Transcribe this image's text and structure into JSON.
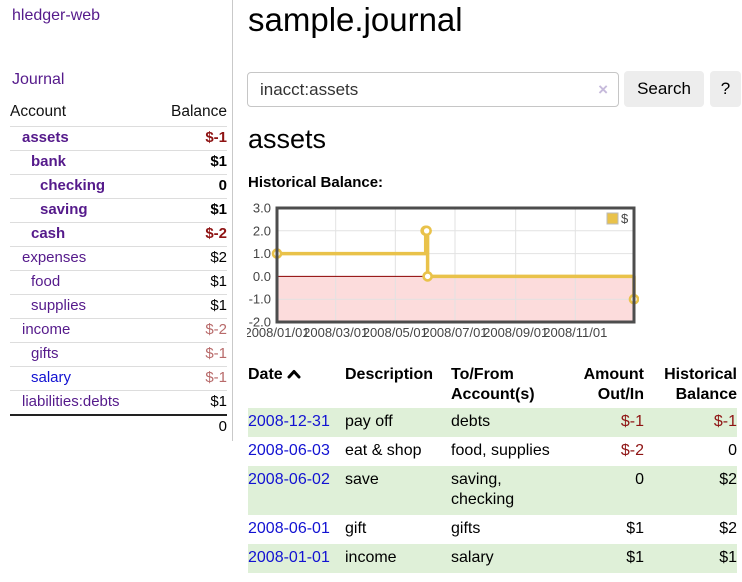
{
  "sidebar": {
    "brand": "hledger-web",
    "nav": {
      "journal_label": "Journal"
    },
    "accounts_table": {
      "headers": {
        "account": "Account",
        "balance": "Balance"
      },
      "rows": [
        {
          "label": "assets",
          "indent": 1,
          "bold": true,
          "balance": "$-1",
          "balance_style": "neg-strong",
          "link_style": "purple"
        },
        {
          "label": "bank",
          "indent": 2,
          "bold": true,
          "balance": "$1",
          "balance_style": "plain",
          "link_style": "purple"
        },
        {
          "label": "checking",
          "indent": 3,
          "bold": true,
          "balance": "0",
          "balance_style": "plain",
          "link_style": "purple"
        },
        {
          "label": "saving",
          "indent": 3,
          "bold": true,
          "balance": "$1",
          "balance_style": "plain",
          "link_style": "purple"
        },
        {
          "label": "cash",
          "indent": 2,
          "bold": true,
          "balance": "$-2",
          "balance_style": "neg-strong",
          "link_style": "purple"
        },
        {
          "label": "expenses",
          "indent": 1,
          "bold": false,
          "balance": "$2",
          "balance_style": "plain",
          "link_style": "purple"
        },
        {
          "label": "food",
          "indent": 2,
          "bold": false,
          "balance": "$1",
          "balance_style": "plain",
          "link_style": "purple"
        },
        {
          "label": "supplies",
          "indent": 2,
          "bold": false,
          "balance": "$1",
          "balance_style": "plain",
          "link_style": "purple"
        },
        {
          "label": "income",
          "indent": 1,
          "bold": false,
          "balance": "$-2",
          "balance_style": "neg-faint",
          "link_style": "purple"
        },
        {
          "label": "gifts",
          "indent": 2,
          "bold": false,
          "balance": "$-1",
          "balance_style": "neg-faint",
          "link_style": "purple"
        },
        {
          "label": "salary",
          "indent": 2,
          "bold": false,
          "balance": "$-1",
          "balance_style": "neg-faint",
          "link_style": "blue"
        },
        {
          "label": "liabilities:debts",
          "indent": 1,
          "bold": false,
          "balance": "$1",
          "balance_style": "plain",
          "link_style": "purple"
        }
      ],
      "total": "0"
    }
  },
  "header": {
    "title": "sample.journal"
  },
  "search": {
    "value": "inacct:assets",
    "clear_icon": "×",
    "search_label": "Search",
    "help_label": "?"
  },
  "account_page": {
    "title": "assets",
    "chart_label": "Historical Balance:"
  },
  "chart_data": {
    "type": "line",
    "step": true,
    "title": "Historical Balance",
    "series": [
      {
        "name": "$",
        "color": "#e9c24a",
        "points": [
          {
            "x": "2008-01-01",
            "y": 1
          },
          {
            "x": "2008-06-01",
            "y": 2
          },
          {
            "x": "2008-06-02",
            "y": 2
          },
          {
            "x": "2008-06-03",
            "y": 0
          },
          {
            "x": "2008-12-31",
            "y": -1
          }
        ]
      }
    ],
    "x_range": [
      "2008-01-01",
      "2008-12-31"
    ],
    "x_tick_labels": [
      "2008/01/01",
      "2008/03/01",
      "2008/05/01",
      "2008/07/01",
      "2008/09/01",
      "2008/11/01"
    ],
    "x_tick_dates": [
      "2008-01-01",
      "2008-03-01",
      "2008-05-01",
      "2008-07-01",
      "2008-09-01",
      "2008-11-01"
    ],
    "y_ticks": [
      "3.0",
      "2.0",
      "1.0",
      "0.0",
      "-1.0",
      "-2.0"
    ],
    "ylim": [
      -2,
      3
    ],
    "grid": true,
    "legend": {
      "label": "$",
      "position": "top-right"
    },
    "negative_region_color": "#fcdcdc",
    "zero_line_color": "#8b0000"
  },
  "register_table": {
    "headers": {
      "date": "Date",
      "description": "Description",
      "accounts": "To/From Account(s)",
      "amount": "Amount Out/In",
      "balance": "Historical Balance"
    },
    "sort": "date-ascending-arrow",
    "rows": [
      {
        "date": "2008-12-31",
        "description": "pay off",
        "accounts": "debts",
        "amount": "$-1",
        "amount_neg": true,
        "balance": "$-1",
        "balance_neg": true,
        "highlight": true
      },
      {
        "date": "2008-06-03",
        "description": "eat & shop",
        "accounts": "food, supplies",
        "amount": "$-2",
        "amount_neg": true,
        "balance": "0",
        "balance_neg": false,
        "highlight": false
      },
      {
        "date": "2008-06-02",
        "description": "save",
        "accounts": "saving, checking",
        "amount": "0",
        "amount_neg": false,
        "balance": "$2",
        "balance_neg": false,
        "highlight": true
      },
      {
        "date": "2008-06-01",
        "description": "gift",
        "accounts": "gifts",
        "amount": "$1",
        "amount_neg": false,
        "balance": "$2",
        "balance_neg": false,
        "highlight": false
      },
      {
        "date": "2008-01-01",
        "description": "income",
        "accounts": "salary",
        "amount": "$1",
        "amount_neg": false,
        "balance": "$1",
        "balance_neg": false,
        "highlight": true
      }
    ]
  },
  "colors": {
    "link_purple": "#551a8b",
    "link_blue": "#1212d2",
    "negative_strong": "#8e1313",
    "negative_faint": "#b86a6a",
    "row_highlight_green": "#dff0d8",
    "series_gold": "#e9c24a",
    "negative_region_pink": "#fcdcdc",
    "zero_line_dark_red": "#8b0000",
    "plot_border_gray": "#4d4d4d",
    "grid_gray": "#e2e2e2",
    "axis_text": "#444444",
    "button_gray": "#ededed"
  }
}
